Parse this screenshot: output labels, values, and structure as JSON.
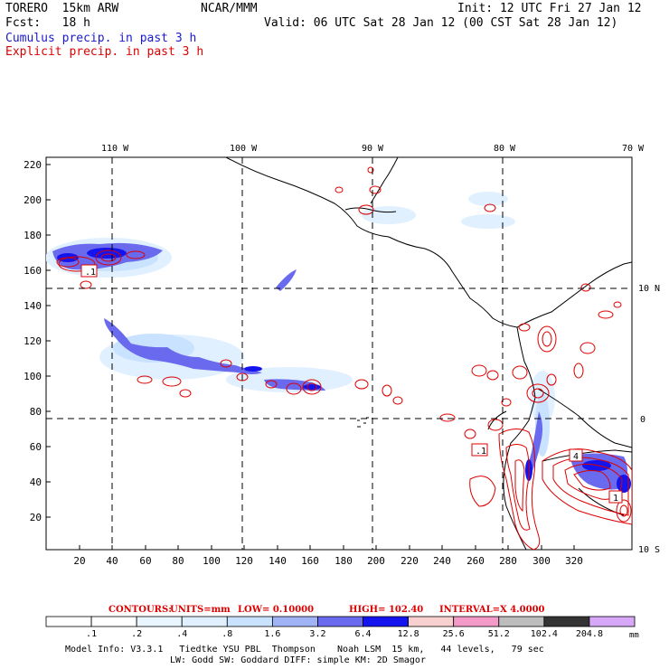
{
  "header": {
    "model": "TORERO  15km ARW",
    "org": "NCAR/MMM",
    "init": "Init: 12 UTC Fri 27 Jan 12",
    "fcst": "Fcst:   18 h",
    "valid": "Valid: 06 UTC Sat 28 Jan 12 (00 CST Sat 28 Jan 12)",
    "cumulus_label": "Cumulus precip. in past 3 h",
    "explicit_label": "Explicit precip. in past 3 h",
    "cumulus_color": "#1a1acc",
    "explicit_color": "#dd0000"
  },
  "axes": {
    "top_lon_labels": [
      "110 W",
      "100 W",
      "90 W",
      "80 W",
      "70 W"
    ],
    "right_lat_labels": [
      "10 N",
      "0",
      "10 S"
    ],
    "x_ticks": [
      "20",
      "40",
      "60",
      "80",
      "100",
      "120",
      "140",
      "160",
      "180",
      "200",
      "220",
      "240",
      "260",
      "280",
      "300",
      "320"
    ],
    "y_ticks": [
      "20",
      "40",
      "60",
      "80",
      "100",
      "120",
      "140",
      "160",
      "180",
      "200",
      "220"
    ]
  },
  "contour_info": {
    "contours": "CONTOURS:",
    "units": "UNITS=mm",
    "low": "LOW= 0.10000",
    "high": "HIGH=  102.40",
    "interval": "INTERVAL=X  4.0000"
  },
  "colorbar": {
    "unit": "mm",
    "bins": [
      "#ffffff",
      "#ffffff",
      "#eaf6ff",
      "#e0f0ff",
      "#c8e2ff",
      "#a0b4f5",
      "#6a6aee",
      "#1414ee",
      "#f8d0d0",
      "#f39ac8",
      "#bdbdbd",
      "#333333",
      "#d8a8f8"
    ],
    "labels": [
      ".1",
      ".2",
      ".4",
      ".8",
      "1.6",
      "3.2",
      "6.4",
      "12.8",
      "25.6",
      "51.2",
      "102.4",
      "204.8"
    ]
  },
  "footer": {
    "line1": "Model Info: V3.3.1   Tiedtke YSU PBL  Thompson    Noah LSM  15 km,   44 levels,   79 sec",
    "line2": "LW: Godd SW: Goddard DIFF: simple KM: 2D Smagor"
  },
  "annotations": {
    "box_west": ".1",
    "box_peru": ".1",
    "box_amaz": "4",
    "box_amaz2": "1"
  }
}
